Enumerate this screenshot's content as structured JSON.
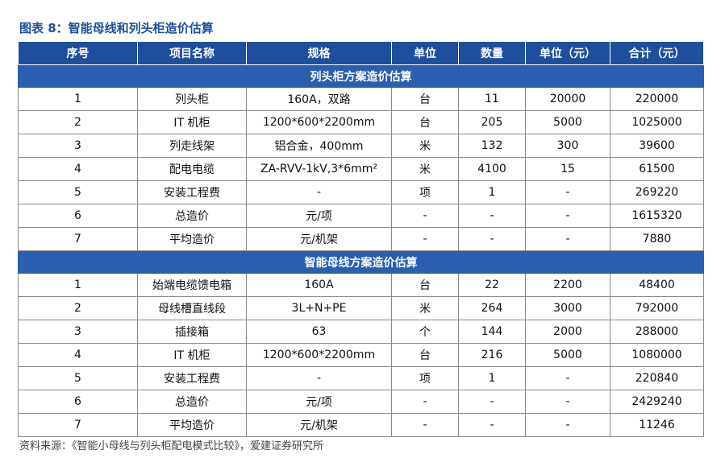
{
  "title": "图表 8：智能母线和列头柜造价估算",
  "table": {
    "header": [
      "序号",
      "项目名称",
      "规格",
      "单位",
      "数量",
      "单位（元）",
      "合计（元）"
    ],
    "sections": [
      {
        "title": "列头柜方案造价估算",
        "rows": [
          [
            "1",
            "列头柜",
            "160A，双路",
            "台",
            "11",
            "20000",
            "220000"
          ],
          [
            "2",
            "IT 机柜",
            "1200*600*2200mm",
            "台",
            "205",
            "5000",
            "1025000"
          ],
          [
            "3",
            "列走线架",
            "铝合金，400mm",
            "米",
            "132",
            "300",
            "39600"
          ],
          [
            "4",
            "配电电缆",
            "ZA-RVV-1kV,3*6mm²",
            "米",
            "4100",
            "15",
            "61500"
          ],
          [
            "5",
            "安装工程费",
            "-",
            "项",
            "1",
            "-",
            "269220"
          ],
          [
            "6",
            "总造价",
            "元/项",
            "-",
            "-",
            "-",
            "1615320"
          ],
          [
            "7",
            "平均造价",
            "元/机架",
            "-",
            "-",
            "-",
            "7880"
          ]
        ]
      },
      {
        "title": "智能母线方案造价估算",
        "rows": [
          [
            "1",
            "始端电缆馈电箱",
            "160A",
            "台",
            "22",
            "2200",
            "48400"
          ],
          [
            "2",
            "母线槽直线段",
            "3L+N+PE",
            "米",
            "264",
            "3000",
            "792000"
          ],
          [
            "3",
            "插接箱",
            "63",
            "个",
            "144",
            "2000",
            "288000"
          ],
          [
            "4",
            "IT 机柜",
            "1200*600*2200mm",
            "台",
            "216",
            "5000",
            "1080000"
          ],
          [
            "5",
            "安装工程费",
            "-",
            "项",
            "1",
            "-",
            "220840"
          ],
          [
            "6",
            "总造价",
            "元/项",
            "-",
            "-",
            "-",
            "2429240"
          ],
          [
            "7",
            "平均造价",
            "元/机架",
            "-",
            "-",
            "-",
            "11246"
          ]
        ]
      }
    ]
  },
  "source": "资料来源：《智能小母线与列头柜配电模式比较》，爱建证券研究所"
}
